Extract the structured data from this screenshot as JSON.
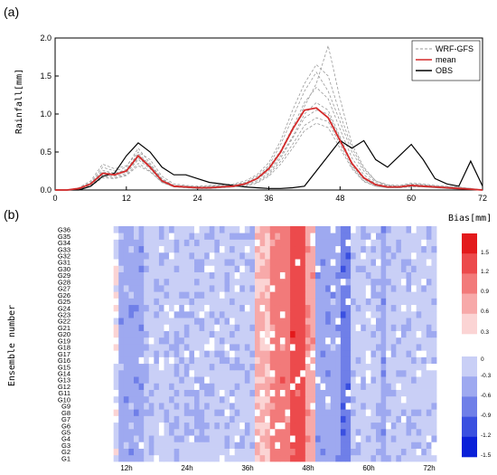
{
  "chart_data": [
    {
      "panel_label": "(a)",
      "type": "line",
      "ylabel": "Rainfall[mm]",
      "xlim": [
        0,
        72
      ],
      "ylim": [
        0,
        2.0
      ],
      "xticks": [
        "0",
        "12",
        "24",
        "36",
        "48",
        "60",
        "72"
      ],
      "yticks": [
        "0.0",
        "0.5",
        "1.0",
        "1.5",
        "2.0"
      ],
      "legend_position": "top-right",
      "x": [
        0,
        2,
        4,
        6,
        8,
        10,
        12,
        14,
        16,
        18,
        20,
        22,
        24,
        26,
        28,
        30,
        32,
        34,
        36,
        38,
        40,
        42,
        44,
        46,
        48,
        50,
        52,
        54,
        56,
        58,
        60,
        62,
        64,
        66,
        68,
        70,
        72
      ],
      "series": [
        {
          "name": "WRF-GFS",
          "style": "dashed",
          "color": "#9a9a9a",
          "members": [
            [
              0,
              0,
              0.01,
              0.08,
              0.22,
              0.2,
              0.24,
              0.42,
              0.3,
              0.12,
              0.05,
              0.04,
              0.03,
              0.03,
              0.04,
              0.05,
              0.08,
              0.14,
              0.25,
              0.45,
              0.7,
              1.0,
              1.15,
              1.05,
              0.7,
              0.35,
              0.15,
              0.07,
              0.04,
              0.04,
              0.06,
              0.05,
              0.04,
              0.03,
              0.02,
              0.01,
              0
            ],
            [
              0,
              0,
              0.02,
              0.1,
              0.3,
              0.25,
              0.3,
              0.55,
              0.35,
              0.15,
              0.06,
              0.05,
              0.04,
              0.05,
              0.06,
              0.07,
              0.1,
              0.18,
              0.32,
              0.6,
              0.95,
              1.3,
              1.55,
              1.3,
              0.9,
              0.5,
              0.25,
              0.1,
              0.06,
              0.05,
              0.08,
              0.07,
              0.05,
              0.04,
              0.03,
              0.02,
              0
            ],
            [
              0,
              0,
              0.01,
              0.06,
              0.18,
              0.16,
              0.2,
              0.35,
              0.25,
              0.1,
              0.04,
              0.03,
              0.02,
              0.02,
              0.03,
              0.04,
              0.06,
              0.1,
              0.2,
              0.38,
              0.6,
              0.85,
              0.95,
              0.9,
              0.6,
              0.3,
              0.12,
              0.05,
              0.03,
              0.03,
              0.05,
              0.04,
              0.03,
              0.02,
              0.01,
              0.01,
              0
            ],
            [
              0,
              0,
              0.02,
              0.09,
              0.26,
              0.22,
              0.27,
              0.48,
              0.33,
              0.14,
              0.06,
              0.05,
              0.04,
              0.04,
              0.05,
              0.06,
              0.09,
              0.16,
              0.3,
              0.52,
              0.82,
              1.15,
              1.35,
              1.2,
              0.8,
              0.42,
              0.2,
              0.08,
              0.05,
              0.04,
              0.07,
              0.06,
              0.05,
              0.04,
              0.03,
              0.02,
              0
            ],
            [
              0,
              0,
              0.03,
              0.12,
              0.34,
              0.28,
              0.32,
              0.5,
              0.4,
              0.18,
              0.08,
              0.06,
              0.05,
              0.06,
              0.07,
              0.08,
              0.12,
              0.2,
              0.36,
              0.65,
              1.05,
              1.4,
              1.65,
              1.5,
              1.0,
              0.55,
              0.28,
              0.12,
              0.07,
              0.06,
              0.09,
              0.08,
              0.06,
              0.05,
              0.04,
              0.02,
              0
            ],
            [
              0,
              0,
              0.01,
              0.07,
              0.2,
              0.18,
              0.22,
              0.4,
              0.28,
              0.11,
              0.05,
              0.04,
              0.03,
              0.03,
              0.04,
              0.05,
              0.07,
              0.12,
              0.22,
              0.42,
              0.68,
              0.95,
              1.05,
              1.0,
              0.68,
              0.32,
              0.14,
              0.06,
              0.04,
              0.03,
              0.05,
              0.05,
              0.04,
              0.03,
              0.02,
              0.01,
              0
            ],
            [
              0,
              0,
              0.02,
              0.08,
              0.24,
              0.21,
              0.26,
              0.46,
              0.32,
              0.13,
              0.05,
              0.04,
              0.03,
              0.04,
              0.05,
              0.06,
              0.08,
              0.15,
              0.28,
              0.5,
              0.78,
              1.1,
              1.4,
              1.9,
              1.2,
              0.6,
              0.3,
              0.12,
              0.06,
              0.05,
              0.07,
              0.06,
              0.05,
              0.04,
              0.03,
              0.02,
              0
            ],
            [
              0,
              0,
              0.01,
              0.05,
              0.16,
              0.15,
              0.19,
              0.32,
              0.24,
              0.1,
              0.04,
              0.03,
              0.02,
              0.02,
              0.03,
              0.04,
              0.05,
              0.09,
              0.18,
              0.34,
              0.55,
              0.78,
              0.88,
              0.82,
              0.55,
              0.28,
              0.11,
              0.05,
              0.03,
              0.03,
              0.04,
              0.04,
              0.03,
              0.02,
              0.01,
              0.01,
              0
            ]
          ]
        },
        {
          "name": "mean",
          "style": "solid",
          "color": "#d42a2a",
          "values": [
            0,
            0,
            0.02,
            0.08,
            0.22,
            0.2,
            0.25,
            0.45,
            0.3,
            0.12,
            0.05,
            0.04,
            0.03,
            0.03,
            0.04,
            0.05,
            0.08,
            0.15,
            0.28,
            0.5,
            0.8,
            1.05,
            1.08,
            0.95,
            0.65,
            0.35,
            0.16,
            0.07,
            0.04,
            0.04,
            0.06,
            0.05,
            0.04,
            0.03,
            0.02,
            0.01,
            0
          ]
        },
        {
          "name": "OBS",
          "style": "solid",
          "color": "#000000",
          "values": [
            0,
            0,
            0,
            0.05,
            0.18,
            0.22,
            0.45,
            0.62,
            0.5,
            0.3,
            0.2,
            0.2,
            0.15,
            0.1,
            0.08,
            0.06,
            0.04,
            0.03,
            0.02,
            0.02,
            0.03,
            0.05,
            0.25,
            0.45,
            0.65,
            0.55,
            0.65,
            0.4,
            0.3,
            0.45,
            0.6,
            0.4,
            0.15,
            0.08,
            0.05,
            0.38,
            0.05
          ]
        }
      ]
    },
    {
      "panel_label": "(b)",
      "type": "heatmap",
      "ylabel": "Ensemble number",
      "colorbar_title": "Bias[mm]",
      "x_ticks": [
        {
          "hour": 12,
          "label": "12h"
        },
        {
          "hour": 24,
          "label": "24h"
        },
        {
          "hour": 36,
          "label": "36h"
        },
        {
          "hour": 48,
          "label": "48h"
        },
        {
          "hour": 60,
          "label": "60h"
        },
        {
          "hour": 72,
          "label": "72h"
        }
      ],
      "xlim": [
        0,
        72
      ],
      "rows": [
        "G1",
        "G2",
        "G3",
        "G4",
        "G5",
        "G6",
        "G7",
        "G8",
        "G9",
        "G10",
        "G11",
        "G12",
        "G13",
        "G14",
        "G15",
        "G16",
        "G17",
        "G18",
        "G19",
        "G20",
        "G21",
        "G22",
        "G23",
        "G24",
        "G25",
        "G26",
        "G27",
        "G28",
        "G29",
        "G30",
        "G31",
        "G32",
        "G33",
        "G34",
        "G35",
        "G36"
      ],
      "colorbar_ticks": [
        "1.5",
        "1.2",
        "0.9",
        "0.6",
        "0.3",
        "0",
        "-0.3",
        "-0.6",
        "-0.9",
        "-1.2",
        "-1.5"
      ],
      "colorbar_colors_positive": [
        "#e31a1c",
        "#ec4a4c",
        "#f27a7a",
        "#f7a9a9",
        "#fbd4d4"
      ],
      "colorbar_colors_negative": [
        "#c9cff6",
        "#9ea9f0",
        "#6f7fe8",
        "#3a50e0",
        "#0a20d8"
      ],
      "profile_note": "bias by forecast hour: near 0 before 8h, about -0.2 from 9-36h (stronger near 10-13h), positive 1.0 to 1.2 peak near 40-47h, negative -0.6 around 48-54h, about -0.2 after 56h"
    }
  ]
}
